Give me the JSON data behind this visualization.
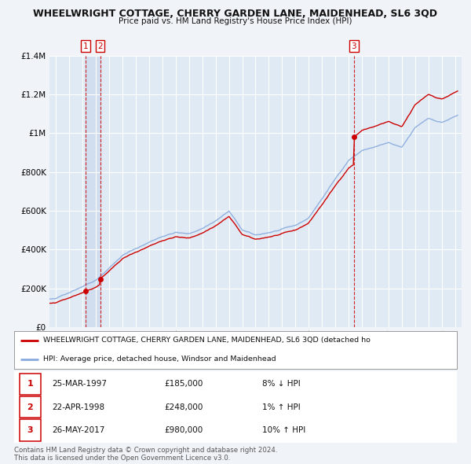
{
  "title": "WHEELWRIGHT COTTAGE, CHERRY GARDEN LANE, MAIDENHEAD, SL6 3QD",
  "subtitle": "Price paid vs. HM Land Registry's House Price Index (HPI)",
  "legend_line1": "WHEELWRIGHT COTTAGE, CHERRY GARDEN LANE, MAIDENHEAD, SL6 3QD (detached ho",
  "legend_line2": "HPI: Average price, detached house, Windsor and Maidenhead",
  "footer1": "Contains HM Land Registry data © Crown copyright and database right 2024.",
  "footer2": "This data is licensed under the Open Government Licence v3.0.",
  "transactions": [
    {
      "num": 1,
      "date": "25-MAR-1997",
      "price": 185000,
      "hpi_pct": "8% ↓ HPI",
      "year": 1997.22
    },
    {
      "num": 2,
      "date": "22-APR-1998",
      "price": 248000,
      "hpi_pct": "1% ↑ HPI",
      "year": 1998.31
    },
    {
      "num": 3,
      "date": "26-MAY-2017",
      "price": 980000,
      "hpi_pct": "10% ↑ HPI",
      "year": 2017.4
    }
  ],
  "ylim": [
    0,
    1400000
  ],
  "yticks": [
    0,
    200000,
    400000,
    600000,
    800000,
    1000000,
    1200000,
    1400000
  ],
  "xlim_start": 1994.5,
  "xlim_end": 2025.5,
  "background_color": "#f0f4f8",
  "plot_bg_color": "#e0eaf4",
  "grid_color": "#ffffff",
  "red_line_color": "#cc0000",
  "blue_line_color": "#88aadd",
  "vline_color": "#cc0000",
  "shade_color": "#ccd9ee"
}
